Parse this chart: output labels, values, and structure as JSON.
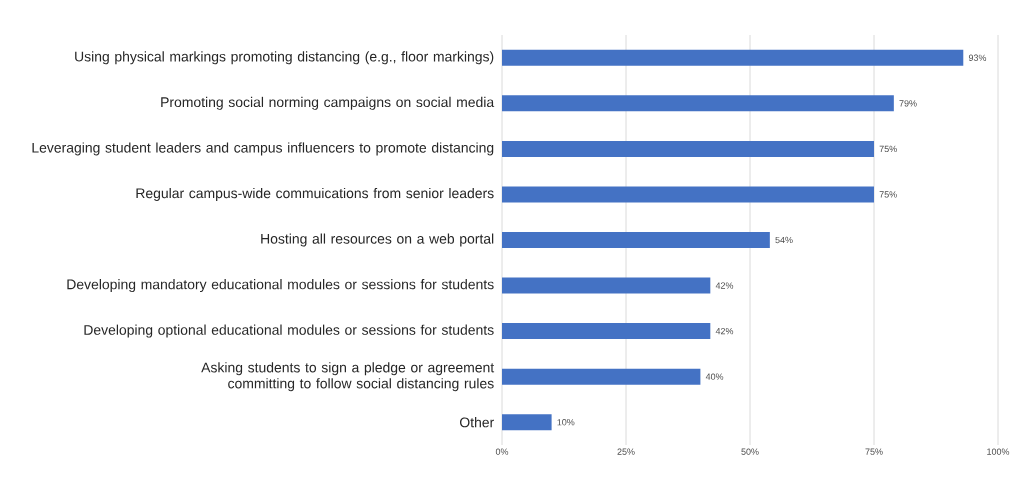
{
  "chart_data": {
    "type": "bar",
    "orientation": "horizontal",
    "categories": [
      "Using physical markings promoting distancing (e.g., floor markings)",
      "Promoting social norming campaigns on social media",
      "Leveraging student leaders and campus influencers to promote distancing",
      "Regular campus-wide commuications from senior leaders",
      "Hosting all resources on a web portal",
      "Developing mandatory educational modules or sessions for students",
      "Developing optional educational modules or sessions for students",
      "Asking students to sign a pledge or agreement committing to follow social distancing rules",
      "Other"
    ],
    "values": [
      93,
      79,
      75,
      75,
      54,
      42,
      42,
      40,
      10
    ],
    "value_labels": [
      "93%",
      "79%",
      "75%",
      "75%",
      "54%",
      "42%",
      "42%",
      "40%",
      "10%"
    ],
    "color": "#4472c4",
    "xlim": [
      0,
      100
    ],
    "xticks": [
      {
        "value": 0,
        "label": "0%"
      },
      {
        "value": 25,
        "label": "25%"
      },
      {
        "value": 50,
        "label": "50%"
      },
      {
        "value": 75,
        "label": "75%"
      },
      {
        "value": 100,
        "label": "100%"
      }
    ],
    "grid": "x"
  }
}
